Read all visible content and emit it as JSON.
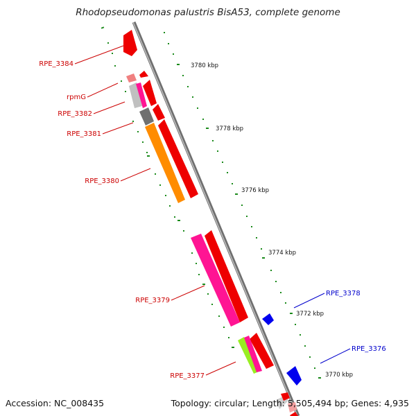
{
  "title": "Rhodopseudomonas palustris BisA53, complete genome",
  "footer": {
    "accession": "Accession: NC_008435",
    "stats": "Topology: circular; Length: 5,505,494 bp; Genes: 4,935"
  },
  "scale_labels": [
    "3780 kbp",
    "3778 kbp",
    "3776 kbp",
    "3774 kbp",
    "3772 kbp",
    "3770 kbp"
  ],
  "gene_labels": {
    "left": [
      "RPE_3384",
      "rpmG",
      "RPE_3382",
      "RPE_3381",
      "RPE_3380",
      "RPE_3379",
      "RPE_3377"
    ],
    "right": [
      "RPE_3378",
      "RPE_3376"
    ]
  },
  "colors": {
    "forward_strand": "#ff0000",
    "reverse_strand": "#0000ee",
    "label_left": "#cc0000",
    "label_right": "#0000cc",
    "tick": "#1a8a1a",
    "backbone": "#888888",
    "orange_feature": "#ff8c00",
    "magenta_feature": "#ff1493",
    "lime_feature": "#99ee22",
    "gray_feature": "#707070"
  }
}
